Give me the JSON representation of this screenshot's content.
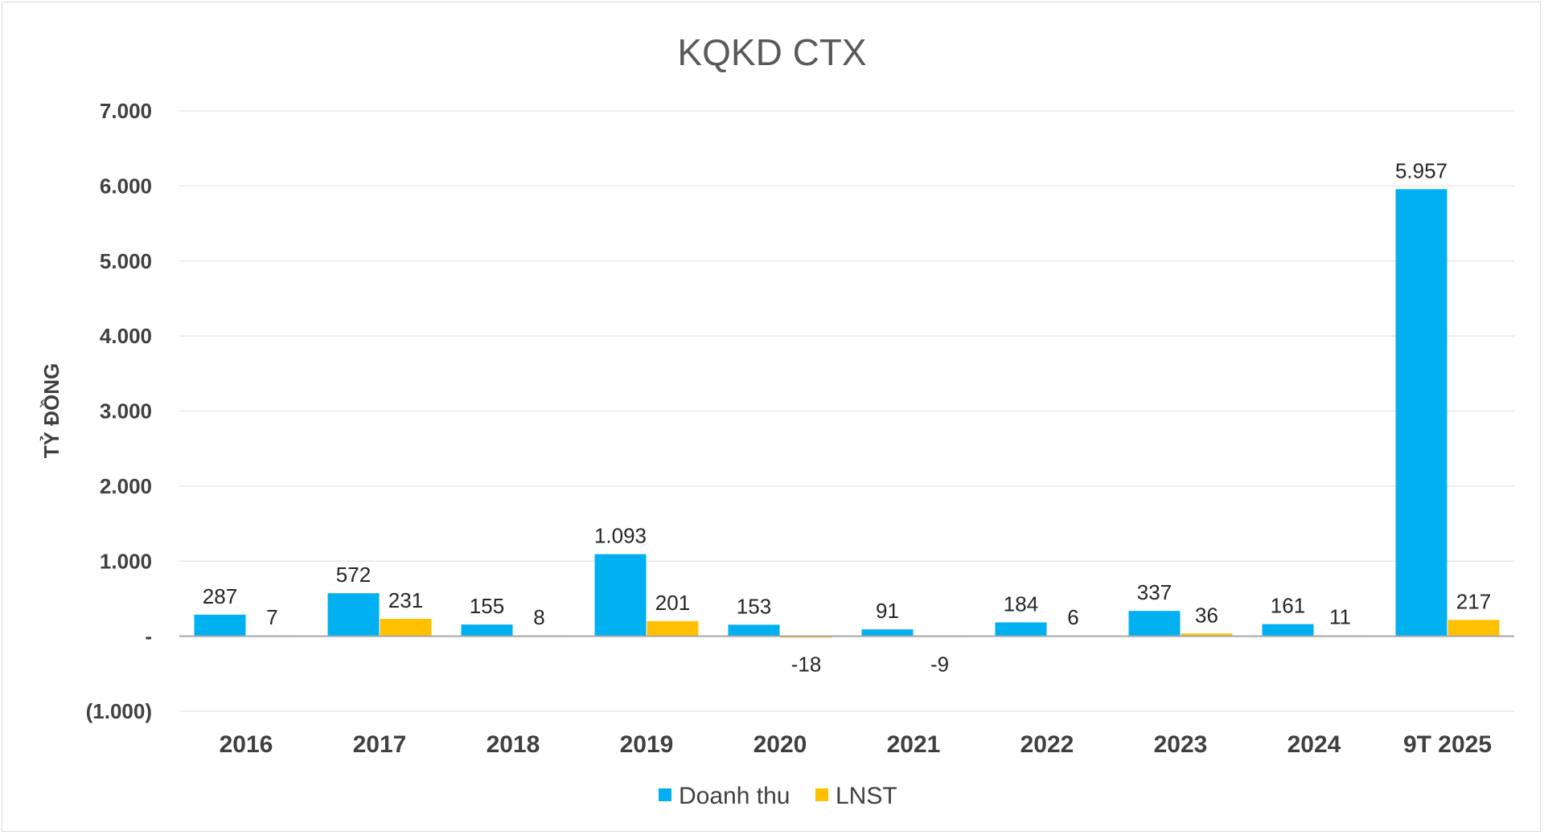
{
  "chart_data": {
    "type": "bar",
    "title": "KQKD CTX",
    "xlabel": "",
    "ylabel": "TỶ ĐỒNG",
    "ylim": [
      -1000,
      7000
    ],
    "grid": true,
    "legend_position": "bottom",
    "categories": [
      "2016",
      "2017",
      "2018",
      "2019",
      "2020",
      "2021",
      "2022",
      "2023",
      "2024",
      "9T 2025"
    ],
    "y_ticks": [
      {
        "value": -1000,
        "label": "(1.000)"
      },
      {
        "value": 0,
        "label": "-"
      },
      {
        "value": 1000,
        "label": "1.000"
      },
      {
        "value": 2000,
        "label": "2.000"
      },
      {
        "value": 3000,
        "label": "3.000"
      },
      {
        "value": 4000,
        "label": "4.000"
      },
      {
        "value": 5000,
        "label": "5.000"
      },
      {
        "value": 6000,
        "label": "6.000"
      },
      {
        "value": 7000,
        "label": "7.000"
      }
    ],
    "series": [
      {
        "name": "Doanh thu",
        "color": "#00b0f0",
        "values": [
          287,
          572,
          155,
          1093,
          153,
          91,
          184,
          337,
          161,
          5957
        ],
        "labels": [
          "287",
          "572",
          "155",
          "1.093",
          "153",
          "91",
          "184",
          "337",
          "161",
          "5.957"
        ]
      },
      {
        "name": "LNST",
        "color": "#ffc000",
        "values": [
          7,
          231,
          8,
          201,
          -18,
          -9,
          6,
          36,
          11,
          217
        ],
        "labels": [
          "7",
          "231",
          "8",
          "201",
          "-18",
          "-9",
          "6",
          "36",
          "11",
          "217"
        ]
      }
    ]
  }
}
